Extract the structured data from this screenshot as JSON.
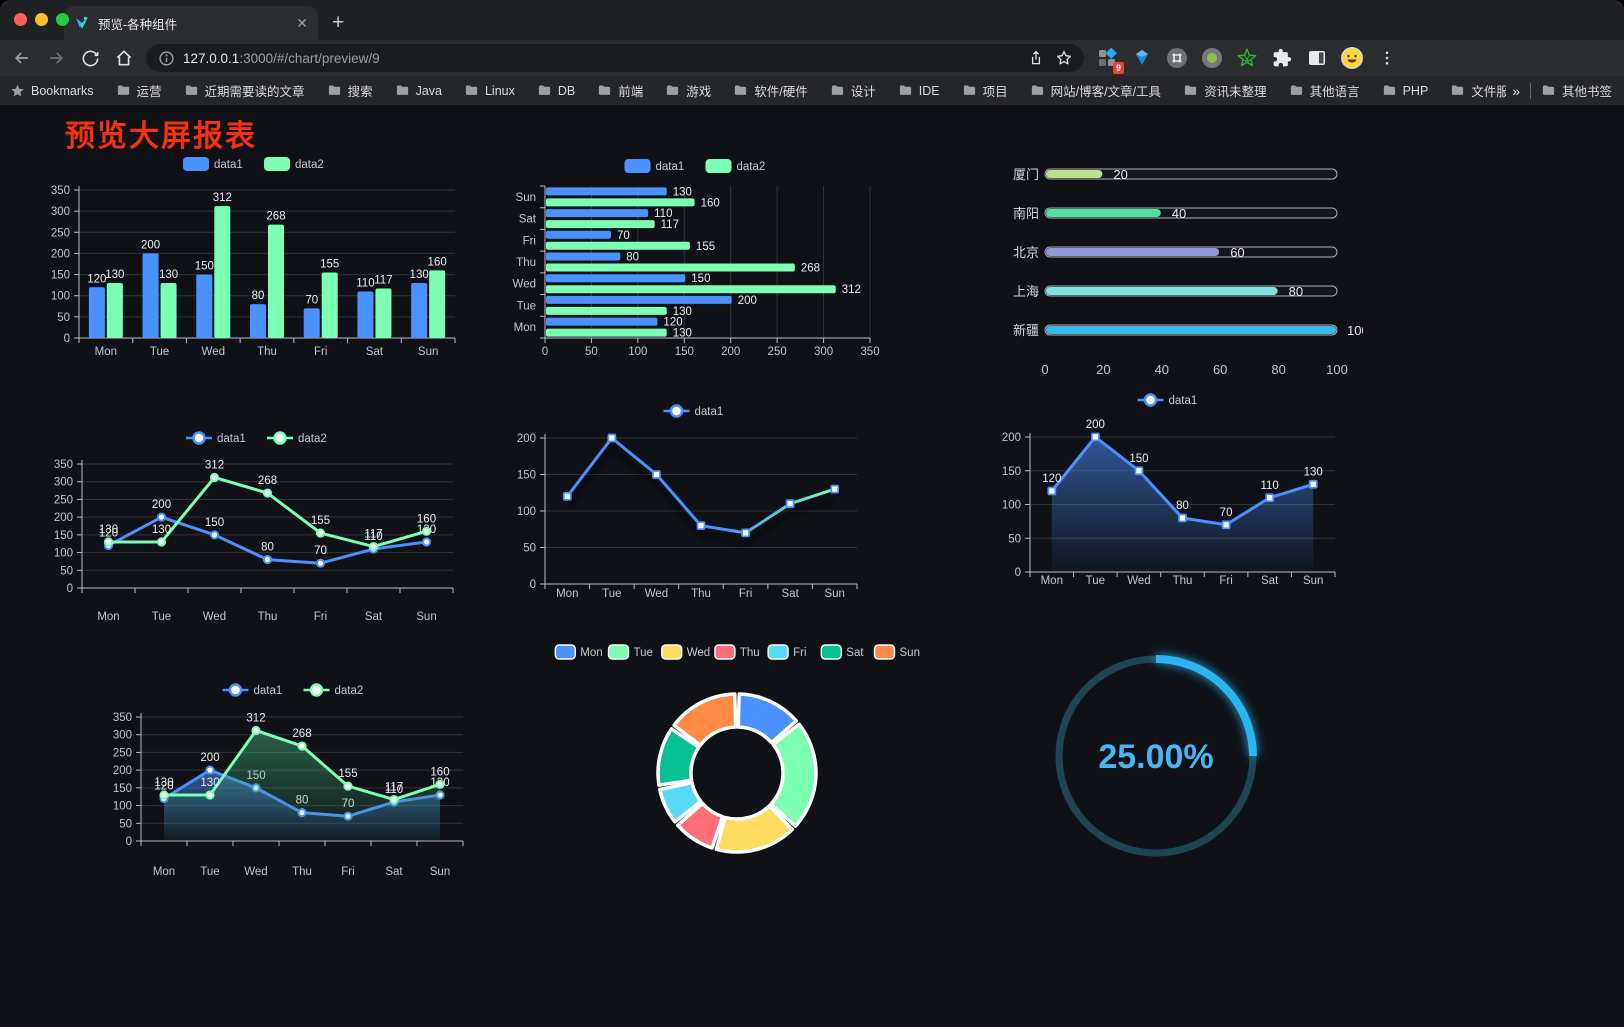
{
  "browser": {
    "tab": {
      "title": "预览-各种组件",
      "close_glyph": "✕"
    },
    "new_tab_glyph": "+",
    "url": {
      "host": "127.0.0.1",
      "rest": ":3000/#/chart/preview/9"
    },
    "bookmarks_label": "Bookmarks",
    "bookmarks": [
      "运营",
      "近期需要读的文章",
      "搜索",
      "Java",
      "Linux",
      "DB",
      "前端",
      "游戏",
      "软件/硬件",
      "设计",
      "IDE",
      "项目",
      "网站/博客/文章/工具",
      "资讯未整理",
      "其他语言",
      "PHP",
      "文件服务器"
    ],
    "overflow_glyph": "»",
    "other_bookmarks": "其他书签",
    "extension_badge": "9"
  },
  "page": {
    "title": "预览大屏报表",
    "title_color": "#f5310f",
    "background": "#0f1117"
  },
  "palette": {
    "blue": "#4992ff",
    "green": "#7cffb2",
    "yellow": "#fddd60",
    "red": "#ff6e76",
    "lightblue": "#58d9f9",
    "teal": "#05c091",
    "orange": "#ff8a45"
  },
  "chart_data": [
    {
      "id": "c1",
      "type": "bar",
      "title": "",
      "categories": [
        "Mon",
        "Tue",
        "Wed",
        "Thu",
        "Fri",
        "Sat",
        "Sun"
      ],
      "series": [
        {
          "name": "data1",
          "color": "#4992ff",
          "values": [
            120,
            200,
            150,
            80,
            70,
            110,
            130
          ]
        },
        {
          "name": "data2",
          "color": "#7cffb2",
          "values": [
            130,
            130,
            312,
            268,
            155,
            117,
            160
          ]
        }
      ],
      "ylim": [
        0,
        350
      ],
      "ystep": 50,
      "legend_position": "top",
      "grid": true,
      "value_labels": true
    },
    {
      "id": "c2",
      "type": "bar",
      "orientation": "horizontal",
      "title": "",
      "categories": [
        "Mon",
        "Tue",
        "Wed",
        "Thu",
        "Fri",
        "Sat",
        "Sun"
      ],
      "display_order_top_to_bottom": [
        "Sun",
        "Sat",
        "Fri",
        "Thu",
        "Wed",
        "Tue",
        "Mon"
      ],
      "series": [
        {
          "name": "data1",
          "color": "#4992ff",
          "values": [
            120,
            200,
            150,
            80,
            70,
            110,
            130
          ]
        },
        {
          "name": "data2",
          "color": "#7cffb2",
          "values": [
            130,
            130,
            312,
            268,
            155,
            117,
            160
          ]
        }
      ],
      "xlim": [
        0,
        350
      ],
      "xstep": 50,
      "legend_position": "top",
      "grid": true,
      "value_labels": true
    },
    {
      "id": "c3",
      "type": "bar",
      "style": "capsule-progress",
      "title": "",
      "rows": [
        {
          "label": "厦门",
          "value": 20,
          "color": "#b6e38b"
        },
        {
          "label": "南阳",
          "value": 40,
          "color": "#4fe0a4"
        },
        {
          "label": "北京",
          "value": 60,
          "color": "#9097dc"
        },
        {
          "label": "上海",
          "value": 80,
          "color": "#7fe2df"
        },
        {
          "label": "新疆",
          "value": 100,
          "color": "#38b9e6"
        }
      ],
      "xlim": [
        0,
        100
      ],
      "xticks": [
        0,
        20,
        40,
        60,
        80,
        100
      ],
      "value_labels": true
    },
    {
      "id": "c4",
      "type": "line",
      "title": "",
      "categories": [
        "Mon",
        "Tue",
        "Wed",
        "Thu",
        "Fri",
        "Sat",
        "Sun"
      ],
      "series": [
        {
          "name": "data1",
          "color": "#4992ff",
          "values": [
            120,
            200,
            150,
            80,
            70,
            110,
            130
          ]
        },
        {
          "name": "data2",
          "color": "#7cffb2",
          "values": [
            130,
            130,
            312,
            268,
            155,
            117,
            160
          ]
        }
      ],
      "ylim": [
        0,
        350
      ],
      "ystep": 50,
      "legend_position": "top",
      "symbol": "circle",
      "value_labels": true
    },
    {
      "id": "c5",
      "type": "line",
      "style": "gradient-shadow",
      "title": "",
      "categories": [
        "Mon",
        "Tue",
        "Wed",
        "Thu",
        "Fri",
        "Sat",
        "Sun"
      ],
      "series": [
        {
          "name": "data1",
          "gradient": [
            "#4992ff",
            "#7cffb2"
          ],
          "color": "#4992ff",
          "values": [
            120,
            200,
            150,
            80,
            70,
            110,
            130
          ]
        }
      ],
      "ylim": [
        0,
        200
      ],
      "ystep": 50,
      "legend_position": "top",
      "symbol": "rect",
      "value_labels": false
    },
    {
      "id": "c6",
      "type": "area",
      "title": "",
      "categories": [
        "Mon",
        "Tue",
        "Wed",
        "Thu",
        "Fri",
        "Sat",
        "Sun"
      ],
      "series": [
        {
          "name": "data1",
          "color": "#4992ff",
          "area": "blue-gradient",
          "values": [
            120,
            200,
            150,
            80,
            70,
            110,
            130
          ]
        }
      ],
      "ylim": [
        0,
        200
      ],
      "ystep": 50,
      "legend_position": "top",
      "symbol": "rect",
      "value_labels": true
    },
    {
      "id": "c7",
      "type": "area",
      "title": "",
      "categories": [
        "Mon",
        "Tue",
        "Wed",
        "Thu",
        "Fri",
        "Sat",
        "Sun"
      ],
      "series": [
        {
          "name": "data1",
          "color": "#4992ff",
          "area": "blue-gradient",
          "values": [
            120,
            200,
            150,
            80,
            70,
            110,
            130
          ]
        },
        {
          "name": "data2",
          "color": "#7cffb2",
          "area": "green-gradient",
          "values": [
            130,
            130,
            312,
            268,
            155,
            117,
            160
          ]
        }
      ],
      "ylim": [
        0,
        350
      ],
      "ystep": 50,
      "legend_position": "top",
      "symbol": "circle",
      "value_labels": true
    },
    {
      "id": "c8",
      "type": "pie",
      "style": "donut-rounded",
      "title": "",
      "categories": [
        "Mon",
        "Tue",
        "Wed",
        "Thu",
        "Fri",
        "Sat",
        "Sun"
      ],
      "values": [
        120,
        200,
        150,
        80,
        70,
        110,
        130
      ],
      "colors": [
        "#4992ff",
        "#7cffb2",
        "#fddd60",
        "#ff6e76",
        "#58d9f9",
        "#05c091",
        "#ff8a45"
      ],
      "legend_position": "top",
      "border_color": "#ffffff"
    },
    {
      "id": "c9",
      "type": "gauge",
      "style": "progress-ring",
      "title": "",
      "value": 25,
      "display": "25.00%",
      "max": 100,
      "arc_color": "#2ab5f2",
      "track_color": "#1d4653",
      "text_color": "#47b6f4"
    }
  ]
}
